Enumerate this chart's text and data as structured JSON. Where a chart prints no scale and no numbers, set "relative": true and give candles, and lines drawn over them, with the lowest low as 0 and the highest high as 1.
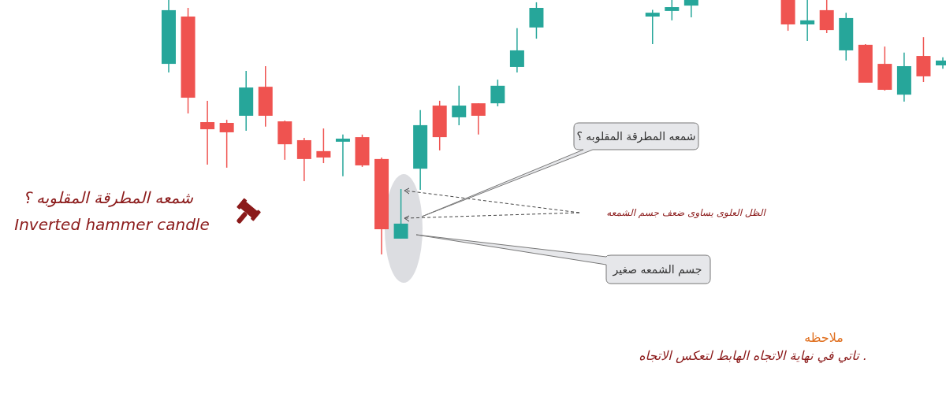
{
  "chart_data": {
    "type": "candlestick",
    "relative": true,
    "categories": [
      null,
      null,
      null,
      null,
      null,
      null,
      null,
      null,
      null,
      null,
      null,
      null,
      null,
      null,
      null,
      null,
      null,
      null,
      null,
      null,
      null,
      null,
      null,
      null,
      null,
      null,
      null,
      null,
      null,
      null,
      null,
      null,
      null,
      null,
      null,
      null,
      null,
      null,
      null,
      null,
      null
    ],
    "ohlc": [
      [
        0.749,
        1,
        0.715,
        0.96
      ],
      [
        0.935,
        0.969,
        0.554,
        0.616
      ],
      [
        0.52,
        0.604,
        0.353,
        0.492
      ],
      [
        0.517,
        0.529,
        0.341,
        0.48
      ],
      [
        0.545,
        0.721,
        0.486,
        0.656
      ],
      [
        0.659,
        0.74,
        0.502,
        0.545
      ],
      [
        0.523,
        0.526,
        0.372,
        0.433
      ],
      [
        0.449,
        0.458,
        0.288,
        0.375
      ],
      [
        0.406,
        0.495,
        0.359,
        0.381
      ],
      [
        0.443,
        0.471,
        0.307,
        0.455
      ],
      [
        0.461,
        0.471,
        0.344,
        0.35
      ],
      [
        0.375,
        0.381,
        0,
        0.099
      ],
      [
        0.062,
        0.257,
        0.062,
        0.121
      ],
      [
        0.337,
        0.567,
        0.254,
        0.508
      ],
      [
        0.585,
        0.604,
        0.409,
        0.461
      ],
      [
        0.539,
        0.663,
        0.508,
        0.585
      ],
      [
        0.594,
        0.594,
        0.471,
        0.545
      ],
      [
        0.594,
        0.687,
        0.582,
        0.663
      ],
      [
        0.737,
        0.889,
        0.715,
        0.802
      ],
      [
        0.892,
        0.991,
        0.848,
        0.969
      ],
      null,
      null,
      null,
      null,
      null,
      [
        0.935,
        0.961,
        0.827,
        0.95
      ],
      [
        0.957,
        1,
        0.92,
        0.972
      ],
      [
        0.978,
        1,
        0.932,
        1
      ],
      null,
      null,
      null,
      null,
      [
        1,
        1,
        0.879,
        0.904
      ],
      [
        0.904,
        1,
        0.839,
        0.92
      ],
      [
        0.96,
        1,
        0.87,
        0.882
      ],
      [
        0.802,
        0.95,
        0.762,
        0.929
      ],
      [
        0.824,
        0.827,
        0.675,
        0.675
      ],
      [
        0.749,
        0.817,
        0.644,
        0.647
      ],
      [
        0.628,
        0.793,
        0.601,
        0.74
      ],
      [
        0.78,
        0.854,
        0.678,
        0.7
      ],
      [
        0.743,
        0.775,
        0.73,
        0.762
      ]
    ],
    "colors": [
      "#26a69a",
      "#ef5350",
      "#ef5350",
      "#ef5350",
      "#26a69a",
      "#ef5350",
      "#ef5350",
      "#ef5350",
      "#ef5350",
      "#26a69a",
      "#ef5350",
      "#ef5350",
      "#26a69a",
      "#26a69a",
      "#ef5350",
      "#26a69a",
      "#ef5350",
      "#26a69a",
      "#26a69a",
      "#26a69a",
      null,
      null,
      null,
      null,
      null,
      "#26a69a",
      "#26a69a",
      "#26a69a",
      null,
      null,
      null,
      null,
      "#ef5350",
      "#26a69a",
      "#ef5350",
      "#26a69a",
      "#ef5350",
      "#ef5350",
      "#26a69a",
      "#ef5350",
      "#26a69a"
    ],
    "annotations": [
      "شمعه المطرقة المقلوبه ؟",
      "Inverted hammer candle",
      "شمعه المطرقة المقلوبه ؟",
      "الظل العلوى يساوى ضعف جسم الشمعه",
      "جسم الشمعه صغير",
      "ملاحظه",
      ". تاتي في نهاية الاتجاه الهابط لتعكس الاتجاه"
    ]
  }
}
